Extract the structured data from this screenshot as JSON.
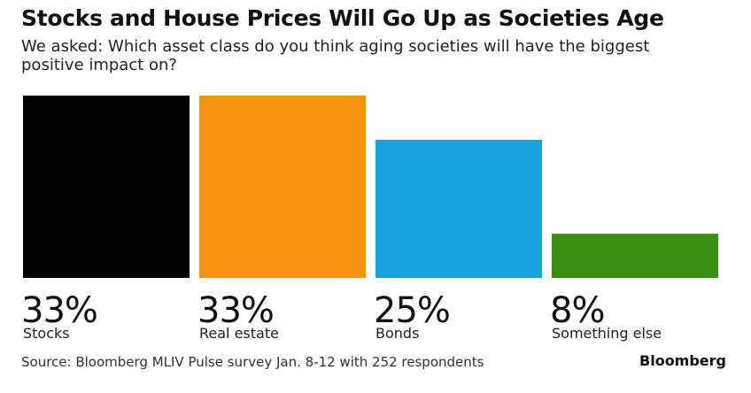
{
  "chart_data": {
    "type": "bar",
    "title": "Stocks and House Prices Will Go Up as Societies Age",
    "subtitle": "We asked: Which asset class do you think aging societies will have the biggest positive impact on?",
    "categories": [
      "Stocks",
      "Real estate",
      "Bonds",
      "Something else"
    ],
    "values": [
      33,
      33,
      25,
      8
    ],
    "value_labels": [
      "33%",
      "33%",
      "25%",
      "8%"
    ],
    "colors": [
      "#000000",
      "#f7940f",
      "#1aa2dc",
      "#3a8e12"
    ],
    "unit": "%",
    "ylim": [
      0,
      33
    ],
    "grid": false,
    "legend": "none"
  },
  "footer": {
    "source": "Source: Bloomberg MLIV Pulse survey Jan. 8-12 with 252 respondents",
    "brand": "Bloomberg"
  }
}
